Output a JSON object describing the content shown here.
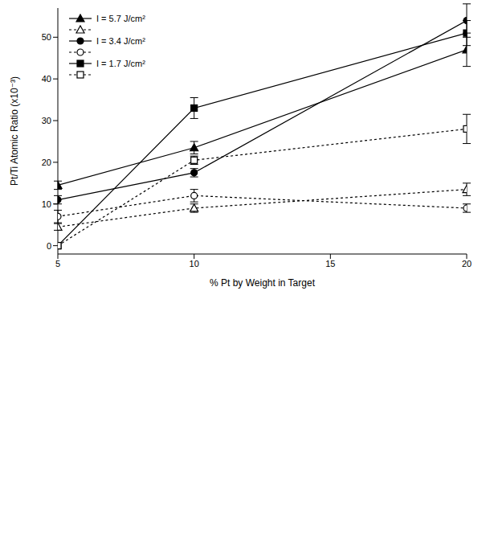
{
  "chart_data": {
    "type": "line",
    "x_label": "% Pt by Weight in Target",
    "y_label": "Pt/Ti Atomic Ratio (x10⁻³)",
    "x": [
      5,
      10,
      20
    ],
    "xlim": [
      5,
      20
    ],
    "xticks": [
      5,
      10,
      15,
      20
    ],
    "ylim": [
      -2,
      57
    ],
    "yticks": [
      0,
      10,
      20,
      30,
      40,
      50
    ],
    "grid": false,
    "legend": "upper left",
    "series": [
      {
        "name": "I = 5.7 J/cm²",
        "color": "#000000",
        "marker": "triangle",
        "line_style": "solid",
        "values": [
          14.5,
          23.5,
          47
        ],
        "errors": [
          1,
          1.5,
          4
        ]
      },
      {
        "color": "#000000",
        "marker": "triangle-open",
        "line_style": "dashed",
        "values": [
          4.5,
          9,
          13.5
        ],
        "errors": [
          0.8,
          1,
          1.5
        ]
      },
      {
        "name": "I = 3.4 J/cm²",
        "color": "#000000",
        "marker": "circle",
        "line_style": "solid",
        "values": [
          11,
          17.5,
          54
        ],
        "errors": [
          1,
          1,
          4
        ]
      },
      {
        "color": "#000000",
        "marker": "circle-open",
        "line_style": "dashed",
        "values": [
          7,
          12,
          9
        ],
        "errors": [
          1.5,
          1.5,
          1
        ]
      },
      {
        "name": "I = 1.7 J/cm²",
        "color": "#000000",
        "marker": "square",
        "line_style": "solid",
        "values": [
          0,
          33,
          51
        ],
        "errors": [
          0,
          2.5,
          3
        ]
      },
      {
        "color": "#000000",
        "marker": "square-open",
        "line_style": "dashed",
        "values": [
          0,
          20.5,
          28
        ],
        "errors": [
          0,
          1,
          3.5
        ]
      }
    ]
  }
}
